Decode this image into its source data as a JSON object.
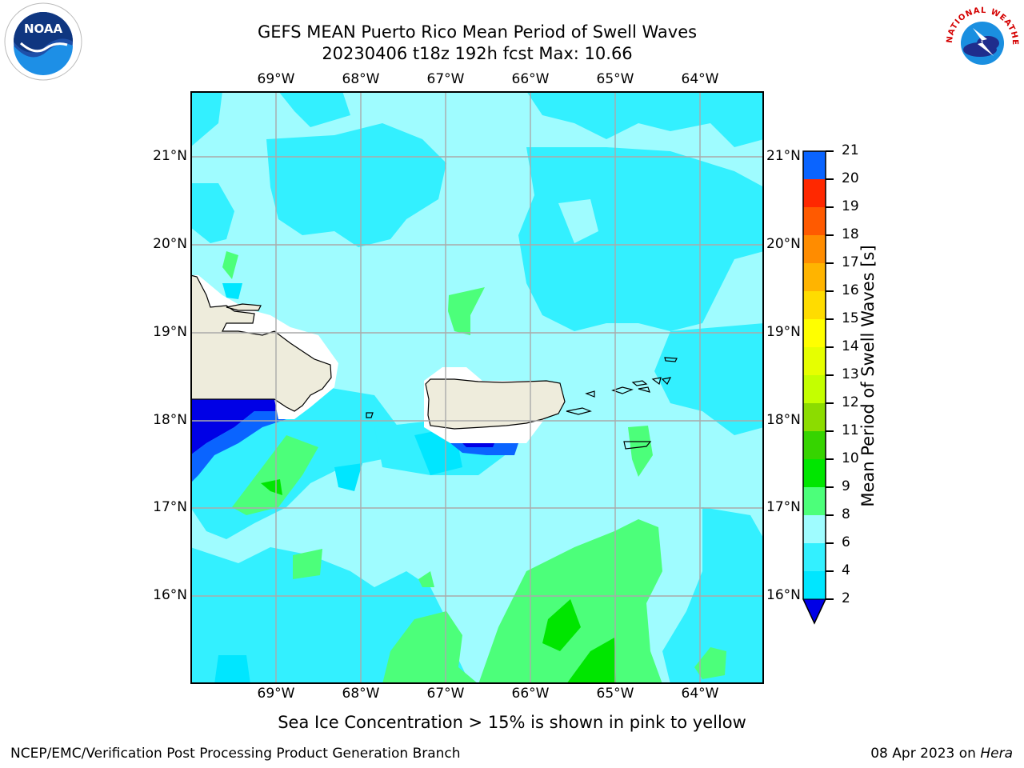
{
  "header": {
    "title_line1": "GEFS MEAN Puerto Rico Mean Period of Swell Waves",
    "title_line2": "20230406 t18z 192h fcst   Max: 10.66"
  },
  "logos": {
    "left": {
      "icon": "noaa-logo-icon",
      "text": "NOAA"
    },
    "right": {
      "icon": "nws-logo-icon",
      "text": "NATIONAL WEATHER SERVICE"
    }
  },
  "map": {
    "lon_labels": [
      "69°W",
      "68°W",
      "67°W",
      "66°W",
      "65°W",
      "64°W"
    ],
    "lat_labels": [
      "21°N",
      "20°N",
      "19°N",
      "18°N",
      "17°N",
      "16°N"
    ],
    "extent": {
      "lon_min": -70.0,
      "lon_max": -63.25,
      "lat_min": 15.0,
      "lat_max": 21.75
    }
  },
  "colorbar": {
    "label": "Mean Period of Swell Waves [s]",
    "ticks": [
      "21",
      "20",
      "19",
      "18",
      "17",
      "16",
      "15",
      "14",
      "13",
      "12",
      "11",
      "10",
      "9",
      "8",
      "6",
      "4",
      "2"
    ],
    "levels": [
      2,
      4,
      6,
      8,
      9,
      10,
      11,
      12,
      13,
      14,
      15,
      16,
      17,
      18,
      19,
      20,
      21
    ],
    "colors": [
      "#0a64ff",
      "#00e6ff",
      "#33f0ff",
      "#9ffcff",
      "#4cff7a",
      "#00e600",
      "#36d400",
      "#8cdc00",
      "#c4ff00",
      "#e6ff00",
      "#ffff00",
      "#ffdc00",
      "#ffb400",
      "#ff8c00",
      "#ff5a00",
      "#ff2800",
      "#ff0000"
    ],
    "under_color": "#0000e6"
  },
  "note": "Sea Ice Concentration > 15% is shown in pink to yellow",
  "footer": {
    "left": "NCEP/EMC/Verification Post Processing Product Generation Branch",
    "date": "08 Apr 2023 on ",
    "machine": "Hera"
  }
}
